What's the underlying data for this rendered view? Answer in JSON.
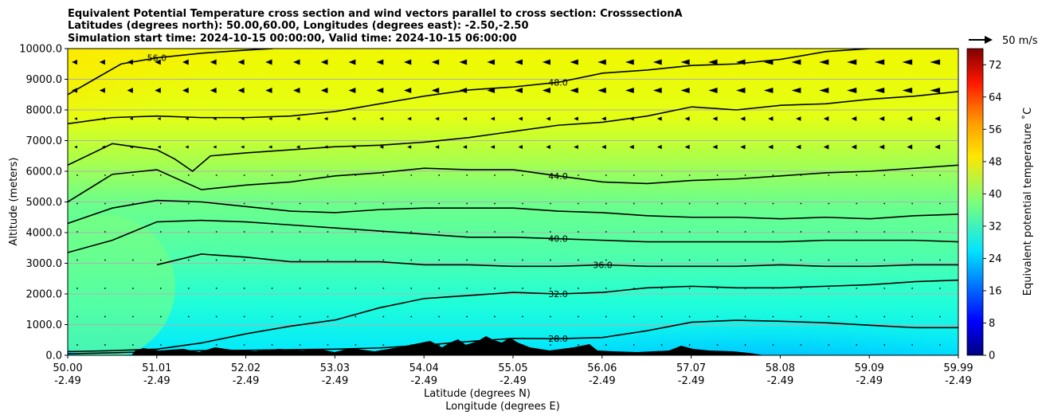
{
  "chart_data": {
    "type": "contourf",
    "title_lines": [
      "Equivalent Potential Temperature cross section and wind vectors parallel to cross section: CrosssectionA",
      "Latitudes (degrees north): 50.00,60.00, Longitudes (degrees east): -2.50,-2.50",
      "Simulation start time: 2024-10-15 00:00:00, Valid time: 2024-10-15 06:00:00"
    ],
    "ylabel": "Altitude (meters)",
    "xlabel_lat": "Latitude (degrees N)",
    "xlabel_lon": "Longitude (degrees E)",
    "ylim": [
      0,
      10000
    ],
    "y_ticks": [
      "0.0",
      "1000.0",
      "2000.0",
      "3000.0",
      "4000.0",
      "5000.0",
      "6000.0",
      "7000.0",
      "8000.0",
      "9000.0",
      "10000.0"
    ],
    "x_range": [
      50.0,
      59.99
    ],
    "x_ticks": [
      {
        "lat": "50.00",
        "lon": "-2.49"
      },
      {
        "lat": "51.01",
        "lon": "-2.49"
      },
      {
        "lat": "52.02",
        "lon": "-2.49"
      },
      {
        "lat": "53.03",
        "lon": "-2.49"
      },
      {
        "lat": "54.04",
        "lon": "-2.49"
      },
      {
        "lat": "55.05",
        "lon": "-2.49"
      },
      {
        "lat": "56.06",
        "lon": "-2.49"
      },
      {
        "lat": "57.07",
        "lon": "-2.49"
      },
      {
        "lat": "58.08",
        "lon": "-2.49"
      },
      {
        "lat": "59.09",
        "lon": "-2.49"
      },
      {
        "lat": "59.99",
        "lon": "-2.49"
      }
    ],
    "grid": "horizontal",
    "colorbar": {
      "label": "Equivalent potential temperature ˚C",
      "range": [
        0,
        76
      ],
      "step": 2,
      "ticks": [
        "0",
        "8",
        "16",
        "24",
        "32",
        "40",
        "48",
        "56",
        "64",
        "72"
      ],
      "colormap": "jet"
    },
    "wind_key": {
      "label": "50 m/s",
      "speed": 50
    },
    "contours": [
      {
        "level": 28.0,
        "label": "28.0",
        "x": [
          50.0,
          50.5,
          51.0,
          51.5,
          52.0,
          52.5,
          53.0,
          53.5,
          54.0,
          54.5,
          55.0,
          55.5,
          56.0,
          56.5,
          57.0,
          57.5,
          58.0,
          58.5,
          59.0,
          59.5,
          59.99
        ],
        "y": [
          50,
          80,
          120,
          150,
          160,
          180,
          200,
          240,
          330,
          450,
          550,
          540,
          580,
          800,
          1080,
          1140,
          1110,
          1060,
          980,
          900,
          900
        ]
      },
      {
        "level": 32.0,
        "label": "32.0",
        "x": [
          50.0,
          50.5,
          51.0,
          51.5,
          52.0,
          52.5,
          53.0,
          53.5,
          54.0,
          54.5,
          55.0,
          55.5,
          56.0,
          56.5,
          57.0,
          57.5,
          58.0,
          58.5,
          59.0,
          59.5,
          59.99
        ],
        "y": [
          120,
          150,
          200,
          400,
          700,
          950,
          1150,
          1550,
          1850,
          1950,
          2050,
          2000,
          2050,
          2200,
          2250,
          2200,
          2200,
          2250,
          2300,
          2400,
          2450
        ]
      },
      {
        "level": 36.0,
        "label": "36.0",
        "x": [
          51.0,
          51.5,
          52.0,
          52.5,
          53.0,
          53.5,
          54.0,
          54.5,
          55.0,
          55.5,
          56.0,
          56.5,
          57.0,
          57.5,
          58.0,
          58.5,
          59.0,
          59.5,
          59.99
        ],
        "y": [
          2950,
          3300,
          3200,
          3050,
          3050,
          3050,
          2950,
          2950,
          2900,
          2900,
          2950,
          2900,
          2900,
          2900,
          2950,
          2900,
          2900,
          2950,
          2950
        ]
      },
      {
        "level": 40.0,
        "label": "40.0",
        "x": [
          50.0,
          50.5,
          51.0,
          51.5,
          52.0,
          52.5,
          53.0,
          53.5,
          54.0,
          54.5,
          55.0,
          55.5,
          56.0,
          56.5,
          57.0,
          57.5,
          58.0,
          58.5,
          59.0,
          59.5,
          59.99
        ],
        "y": [
          3350,
          3750,
          4350,
          4400,
          4350,
          4250,
          4150,
          4050,
          3950,
          3850,
          3850,
          3800,
          3750,
          3700,
          3700,
          3700,
          3700,
          3750,
          3750,
          3750,
          3700
        ]
      },
      {
        "level": 40.0,
        "label": "",
        "x": [
          50.0,
          50.5,
          51.0,
          51.5,
          52.0,
          52.5,
          53.0,
          53.5,
          54.0,
          54.5,
          55.0,
          55.5,
          56.0,
          56.5,
          57.0,
          57.5,
          58.0,
          58.5,
          59.0,
          59.5,
          59.99
        ],
        "y": [
          4300,
          4800,
          5050,
          5000,
          4850,
          4700,
          4650,
          4750,
          4800,
          4800,
          4800,
          4700,
          4650,
          4550,
          4500,
          4500,
          4450,
          4500,
          4450,
          4550,
          4600
        ]
      },
      {
        "level": 44.0,
        "label": "44.0",
        "x": [
          50.0,
          50.5,
          51.0,
          51.5,
          52.0,
          52.5,
          53.0,
          53.5,
          54.0,
          54.5,
          55.0,
          55.5,
          56.0,
          56.5,
          57.0,
          57.5,
          58.0,
          58.5,
          59.0,
          59.5,
          59.99
        ],
        "y": [
          5000,
          5900,
          6050,
          5400,
          5550,
          5650,
          5850,
          5950,
          6100,
          6050,
          6050,
          5850,
          5650,
          5600,
          5700,
          5750,
          5850,
          5950,
          6000,
          6100,
          6200
        ]
      },
      {
        "level": 44.0,
        "label": "",
        "x": [
          50.0,
          50.5,
          51.0,
          51.2,
          51.4,
          51.6,
          52.0,
          52.5,
          53.0,
          53.5,
          54.0,
          54.5,
          55.0,
          55.5,
          56.0,
          56.5,
          57.0,
          57.5,
          58.0,
          58.5,
          59.0,
          59.5,
          59.99
        ],
        "y": [
          6200,
          6900,
          6700,
          6400,
          6000,
          6500,
          6600,
          6700,
          6800,
          6850,
          6950,
          7100,
          7300,
          7500,
          7600,
          7800,
          8100,
          8000,
          8150,
          8200,
          8350,
          8450,
          8600
        ]
      },
      {
        "level": 48.0,
        "label": "48.0",
        "x": [
          50.0,
          50.5,
          51.0,
          51.5,
          52.0,
          52.5,
          53.0,
          53.5,
          54.0,
          54.5,
          55.0,
          55.5,
          56.0,
          56.5,
          57.0,
          57.5,
          58.0,
          58.5,
          59.0,
          59.5,
          59.99
        ],
        "y": [
          7550,
          7750,
          7800,
          7750,
          7750,
          7800,
          7950,
          8200,
          8450,
          8650,
          8750,
          8900,
          9200,
          9300,
          9450,
          9500,
          9650,
          9900,
          10000,
          10000,
          10000
        ]
      },
      {
        "level": 56.0,
        "label": "56.0",
        "x": [
          50.0,
          50.3,
          50.6,
          51.0,
          51.5,
          52.0,
          52.3
        ],
        "y": [
          8500,
          9000,
          9500,
          9700,
          9850,
          9950,
          10000
        ]
      }
    ]
  }
}
